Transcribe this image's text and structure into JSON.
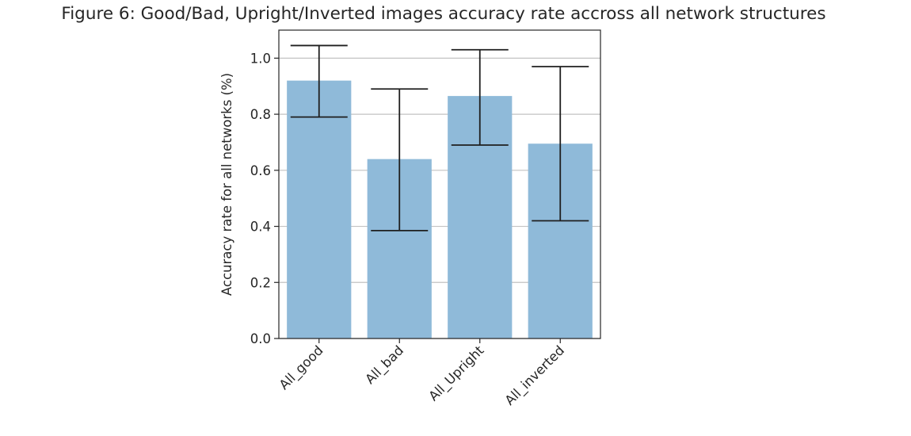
{
  "chart_data": {
    "type": "bar",
    "title": "Figure 6: Good/Bad, Upright/Inverted images accuracy rate accross all network structures",
    "xlabel": "",
    "ylabel": "Accuracy rate for all networks (%)",
    "categories": [
      "All_good",
      "All_bad",
      "All_Upright",
      "All_inverted"
    ],
    "values": [
      0.92,
      0.64,
      0.865,
      0.695
    ],
    "error_low": [
      0.79,
      0.385,
      0.69,
      0.42
    ],
    "error_high": [
      1.045,
      0.89,
      1.03,
      0.97
    ],
    "ylim": [
      0,
      1.1
    ],
    "yticks": [
      "0.0",
      "0.2",
      "0.4",
      "0.6",
      "0.8",
      "1.0"
    ],
    "ytick_values": [
      0.0,
      0.2,
      0.4,
      0.6,
      0.8,
      1.0
    ],
    "grid": "horizontal",
    "bar_color": "#8fbad9",
    "error_bar_color": "#1f1f1f",
    "grid_color": "#c2c2c2"
  }
}
